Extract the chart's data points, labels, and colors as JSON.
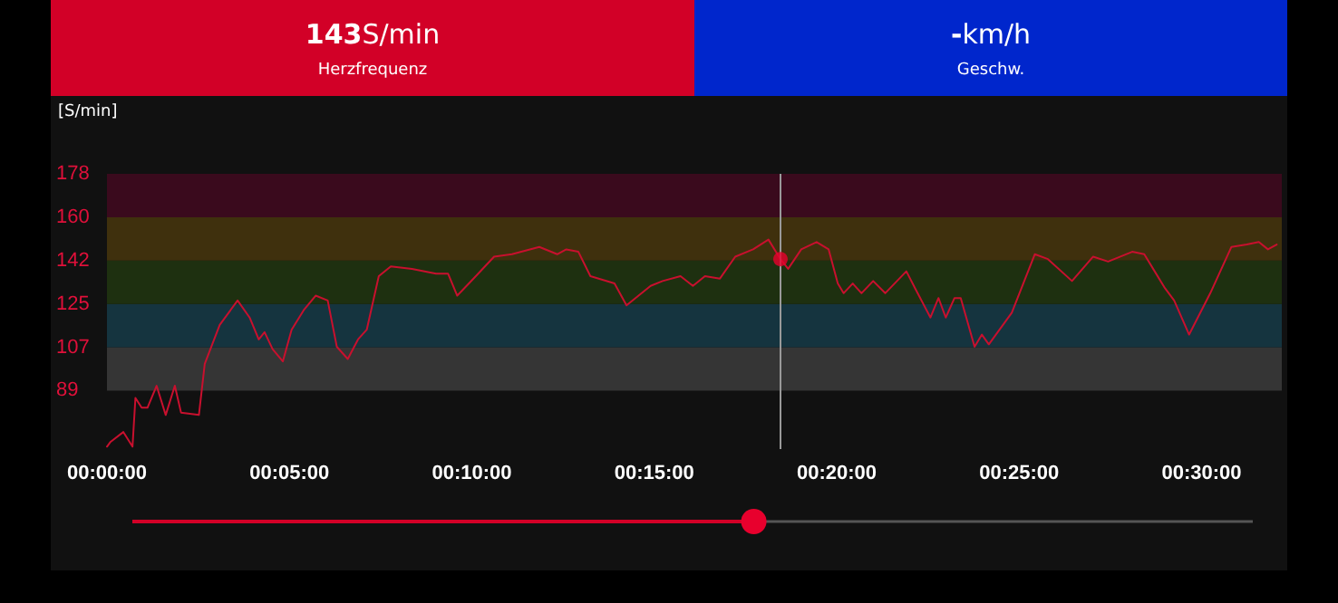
{
  "chart_data": {
    "type": "line",
    "ylabel": "[S/min]",
    "annotations": [
      "143S/min",
      "Herzfrequenz",
      "-km/h",
      "Geschw."
    ],
    "xlim": [
      0,
      32.2
    ],
    "xticks": [
      {
        "value": 0,
        "label": "00:00:00"
      },
      {
        "value": 5,
        "label": "00:05:00"
      },
      {
        "value": 10,
        "label": "00:10:00"
      },
      {
        "value": 15,
        "label": "00:15:00"
      },
      {
        "value": 20,
        "label": "00:20:00"
      },
      {
        "value": 25,
        "label": "00:25:00"
      },
      {
        "value": 30,
        "label": "00:30:00"
      }
    ],
    "ylim": [
      65,
      178
    ],
    "yticks": [
      89,
      {
        "value": 106.8,
        "label": "107"
      },
      {
        "value": 124.6,
        "label": "125"
      },
      {
        "value": 142.4,
        "label": "142"
      },
      {
        "value": 160.2,
        "label": "160"
      },
      178
    ],
    "grid": false,
    "marker": "none",
    "line_style": "solid",
    "bands": [
      {
        "axis": "y",
        "from": 89,
        "to": 106.8,
        "color": "#353535"
      },
      {
        "axis": "y",
        "from": 106.8,
        "to": 124.6,
        "color": "#15343f"
      },
      {
        "axis": "y",
        "from": 124.6,
        "to": 142.4,
        "color": "#1e3010"
      },
      {
        "axis": "y",
        "from": 142.4,
        "to": 160.2,
        "color": "#3f300d"
      },
      {
        "axis": "y",
        "from": 160.2,
        "to": 178,
        "color": "#3a0a1d"
      }
    ],
    "ref_lines": [
      {
        "axis": "x",
        "value": 18.46,
        "color": "#9a9a9a"
      }
    ],
    "series": [
      {
        "color": "#c8102e",
        "x": [
          0,
          0.1,
          0.45,
          0.7,
          0.78,
          0.95,
          1.11,
          1.36,
          1.61,
          1.86,
          2.03,
          2.52,
          2.68,
          3.09,
          3.58,
          3.91,
          4.16,
          4.32,
          4.54,
          4.82,
          5.06,
          5.39,
          5.72,
          6.05,
          6.3,
          6.6,
          6.88,
          7.12,
          7.45,
          7.78,
          8.36,
          9.02,
          9.35,
          9.6,
          10.11,
          10.61,
          11.1,
          11.85,
          12.34,
          12.59,
          12.92,
          13.25,
          13.91,
          14.24,
          14.9,
          15.23,
          15.72,
          16.06,
          16.39,
          16.8,
          17.22,
          17.71,
          18.13,
          18.46,
          18.67,
          19.03,
          19.45,
          19.78,
          20.03,
          20.19,
          20.44,
          20.68,
          21.0,
          21.33,
          21.91,
          22.15,
          22.57,
          22.79,
          22.99,
          23.23,
          23.4,
          23.78,
          23.98,
          24.17,
          24.8,
          25.43,
          25.79,
          26.45,
          27.03,
          27.44,
          28.1,
          28.43,
          29.0,
          29.25,
          29.66,
          30.24,
          30.82,
          31.24,
          31.57,
          31.82,
          32.06
        ],
        "values": [
          66,
          68,
          72,
          66,
          86,
          82,
          82,
          91,
          79,
          91,
          80,
          79,
          100,
          116,
          126,
          119,
          110,
          113,
          106,
          101,
          114,
          122,
          128,
          126,
          107,
          102,
          110,
          114,
          136,
          140,
          139,
          137,
          137,
          128,
          136,
          144,
          145,
          148,
          145,
          147,
          146,
          136,
          133,
          124,
          132,
          134,
          136,
          132,
          136,
          135,
          144,
          147,
          151,
          143,
          139,
          147,
          150,
          147,
          133,
          129,
          133,
          129,
          134,
          129,
          138,
          131,
          119,
          127,
          119,
          127,
          127,
          107,
          112,
          108,
          121,
          145,
          143,
          134,
          144,
          142,
          146,
          145,
          131,
          126,
          112,
          129,
          148,
          149,
          150,
          147,
          149
        ]
      },
      {
        "type": "scatter",
        "marker": "circle",
        "color": "#e8002d",
        "x": [
          18.46
        ],
        "values": [
          143
        ]
      }
    ]
  }
}
